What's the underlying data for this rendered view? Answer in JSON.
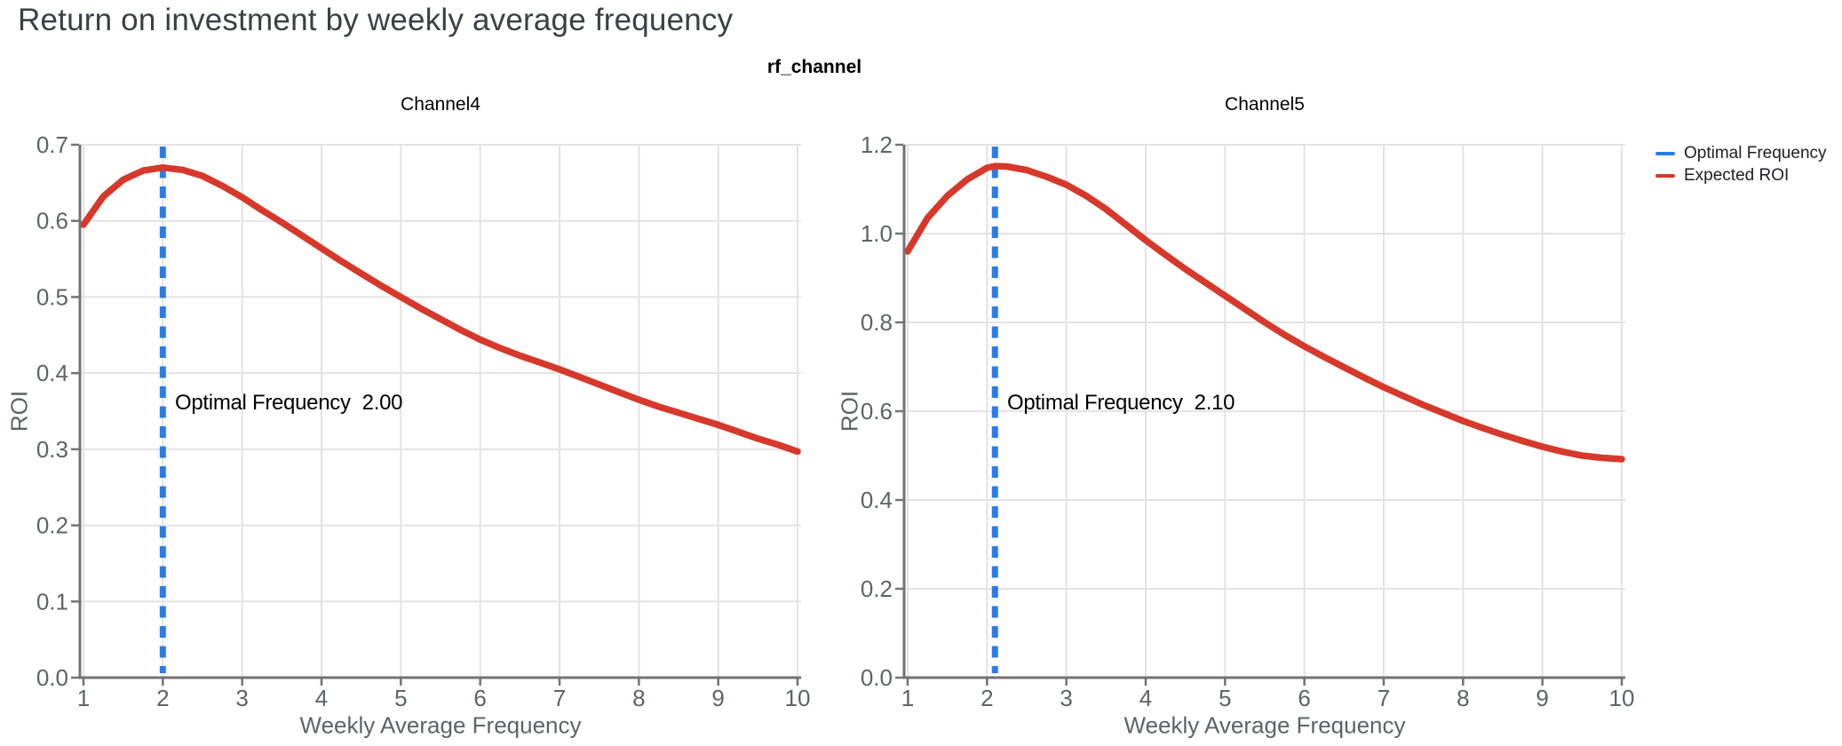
{
  "page": {
    "title": "Return on investment by weekly average frequency"
  },
  "figure": {
    "suptitle": "rf_channel",
    "legend": {
      "items": [
        {
          "label": "Optimal Frequency",
          "color": "#2b7ce9"
        },
        {
          "label": "Expected ROI",
          "color": "#d6392b"
        }
      ]
    }
  },
  "colors": {
    "expected_roi": "#d6392b",
    "optimal_frequency": "#2b7ce9",
    "grid": "#e3e3e3",
    "spine": "#737373",
    "tick_text": "#5f6368"
  },
  "chart_data": [
    {
      "type": "line",
      "title": "Channel4",
      "xlabel": "Weekly Average Frequency",
      "ylabel": "ROI",
      "xlim": [
        1,
        10
      ],
      "ylim": [
        0,
        0.7
      ],
      "xticks": [
        "1",
        "2",
        "3",
        "4",
        "5",
        "6",
        "7",
        "8",
        "9",
        "10"
      ],
      "yticks": [
        "0.0",
        "0.1",
        "0.2",
        "0.3",
        "0.4",
        "0.5",
        "0.6",
        "0.7"
      ],
      "grid": true,
      "legend_position": "outside-right",
      "optimal_line": {
        "x": 2.0,
        "color": "#2b7ce9",
        "style": "dashed"
      },
      "annotation": {
        "label": "Optimal Frequency",
        "value": "2.00"
      },
      "series": [
        {
          "name": "Expected ROI",
          "color": "#d6392b",
          "points": [
            [
              1,
              0.595
            ],
            [
              1.25,
              0.632
            ],
            [
              1.5,
              0.654
            ],
            [
              1.75,
              0.666
            ],
            [
              2,
              0.67
            ],
            [
              2.25,
              0.667
            ],
            [
              2.5,
              0.659
            ],
            [
              2.75,
              0.646
            ],
            [
              3,
              0.631
            ],
            [
              3.25,
              0.614
            ],
            [
              3.5,
              0.598
            ],
            [
              3.75,
              0.581
            ],
            [
              4,
              0.564
            ],
            [
              4.25,
              0.547
            ],
            [
              4.5,
              0.531
            ],
            [
              4.75,
              0.515
            ],
            [
              5,
              0.5
            ],
            [
              5.25,
              0.485
            ],
            [
              5.5,
              0.471
            ],
            [
              5.75,
              0.457
            ],
            [
              6,
              0.444
            ],
            [
              6.25,
              0.433
            ],
            [
              6.5,
              0.423
            ],
            [
              6.75,
              0.414
            ],
            [
              7,
              0.405
            ],
            [
              7.25,
              0.395
            ],
            [
              7.5,
              0.385
            ],
            [
              7.75,
              0.375
            ],
            [
              8,
              0.365
            ],
            [
              8.25,
              0.356
            ],
            [
              8.5,
              0.348
            ],
            [
              8.75,
              0.34
            ],
            [
              9,
              0.332
            ],
            [
              9.25,
              0.323
            ],
            [
              9.5,
              0.314
            ],
            [
              9.75,
              0.306
            ],
            [
              10,
              0.297
            ]
          ]
        }
      ]
    },
    {
      "type": "line",
      "title": "Channel5",
      "xlabel": "Weekly Average Frequency",
      "ylabel": "ROI",
      "xlim": [
        1,
        10
      ],
      "ylim": [
        0,
        1.2
      ],
      "xticks": [
        "1",
        "2",
        "3",
        "4",
        "5",
        "6",
        "7",
        "8",
        "9",
        "10"
      ],
      "yticks": [
        "0.0",
        "0.2",
        "0.4",
        "0.6",
        "0.8",
        "1.0",
        "1.2"
      ],
      "grid": true,
      "legend_position": "outside-right",
      "optimal_line": {
        "x": 2.1,
        "color": "#2b7ce9",
        "style": "dashed"
      },
      "annotation": {
        "label": "Optimal Frequency",
        "value": "2.10"
      },
      "series": [
        {
          "name": "Expected ROI",
          "color": "#d6392b",
          "points": [
            [
              1,
              0.96
            ],
            [
              1.25,
              1.035
            ],
            [
              1.5,
              1.085
            ],
            [
              1.75,
              1.122
            ],
            [
              2,
              1.148
            ],
            [
              2.1,
              1.152
            ],
            [
              2.25,
              1.151
            ],
            [
              2.5,
              1.143
            ],
            [
              2.75,
              1.128
            ],
            [
              3,
              1.11
            ],
            [
              3.25,
              1.085
            ],
            [
              3.5,
              1.055
            ],
            [
              3.75,
              1.02
            ],
            [
              4,
              0.985
            ],
            [
              4.25,
              0.952
            ],
            [
              4.5,
              0.92
            ],
            [
              4.75,
              0.89
            ],
            [
              5,
              0.86
            ],
            [
              5.25,
              0.83
            ],
            [
              5.5,
              0.8
            ],
            [
              5.75,
              0.772
            ],
            [
              6,
              0.746
            ],
            [
              6.25,
              0.722
            ],
            [
              6.5,
              0.699
            ],
            [
              6.75,
              0.676
            ],
            [
              7,
              0.654
            ],
            [
              7.25,
              0.634
            ],
            [
              7.5,
              0.614
            ],
            [
              7.75,
              0.596
            ],
            [
              8,
              0.578
            ],
            [
              8.25,
              0.562
            ],
            [
              8.5,
              0.547
            ],
            [
              8.75,
              0.533
            ],
            [
              9,
              0.52
            ],
            [
              9.25,
              0.509
            ],
            [
              9.5,
              0.5
            ],
            [
              9.75,
              0.495
            ],
            [
              10,
              0.492
            ]
          ]
        }
      ]
    }
  ]
}
